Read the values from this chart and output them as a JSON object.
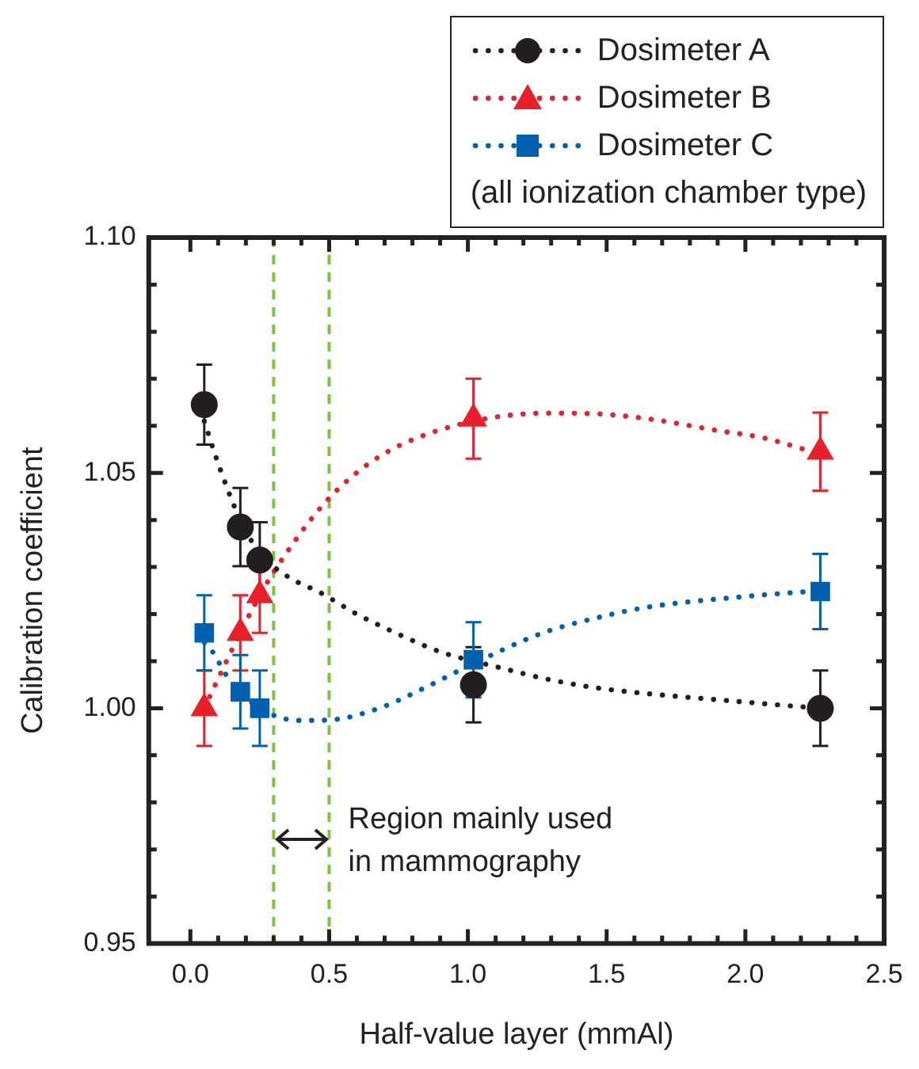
{
  "chart_data": {
    "type": "scatter",
    "xlabel": "Half-value layer (mmAl)",
    "ylabel": "Calibration coefficient",
    "legend": "top right",
    "legend_title": "(all ionization chamber type)",
    "grid": false,
    "xlim": [
      -0.15,
      2.5
    ],
    "ylim": [
      0.95,
      1.1
    ],
    "xticks": [
      {
        "value": 0,
        "label": "0.0"
      },
      {
        "value": 0.1,
        "label": null
      },
      {
        "value": 0.2,
        "label": null
      },
      {
        "value": 0.3,
        "label": null
      },
      {
        "value": 0.4,
        "label": null
      },
      {
        "value": 0.5,
        "label": "0.5"
      },
      {
        "value": 0.6,
        "label": null
      },
      {
        "value": 0.7,
        "label": null
      },
      {
        "value": 0.8,
        "label": null
      },
      {
        "value": 0.9,
        "label": null
      },
      {
        "value": 1,
        "label": "1.0"
      },
      {
        "value": 1.1,
        "label": null
      },
      {
        "value": 1.2,
        "label": null
      },
      {
        "value": 1.3,
        "label": null
      },
      {
        "value": 1.4,
        "label": null
      },
      {
        "value": 1.5,
        "label": "1.5"
      },
      {
        "value": 1.6,
        "label": null
      },
      {
        "value": 1.7,
        "label": null
      },
      {
        "value": 1.8,
        "label": null
      },
      {
        "value": 1.9,
        "label": null
      },
      {
        "value": 2,
        "label": "2.0"
      },
      {
        "value": 2.1,
        "label": null
      },
      {
        "value": 2.2,
        "label": null
      },
      {
        "value": 2.3,
        "label": null
      },
      {
        "value": 2.4,
        "label": null
      },
      {
        "value": 2.5,
        "label": "2.5"
      }
    ],
    "yticks": [
      {
        "value": 0.95,
        "label": "0.95"
      },
      {
        "value": 0.96,
        "label": null
      },
      {
        "value": 0.97,
        "label": null
      },
      {
        "value": 0.98,
        "label": null
      },
      {
        "value": 0.99,
        "label": null
      },
      {
        "value": 1,
        "label": "1.00"
      },
      {
        "value": 1.01,
        "label": null
      },
      {
        "value": 1.02,
        "label": null
      },
      {
        "value": 1.03,
        "label": null
      },
      {
        "value": 1.04,
        "label": null
      },
      {
        "value": 1.05,
        "label": "1.05"
      },
      {
        "value": 1.06,
        "label": null
      },
      {
        "value": 1.07,
        "label": null
      },
      {
        "value": 1.08,
        "label": null
      },
      {
        "value": 1.09,
        "label": null
      },
      {
        "value": 1.1,
        "label": "1.10"
      }
    ],
    "series": [
      {
        "type": "line",
        "color": "#231f20",
        "line_style": "dotted",
        "marker": "none",
        "x": [
          0.05,
          0.1,
          0.18,
          0.25,
          0.35,
          0.47,
          0.6,
          0.74,
          0.9,
          1.11,
          1.3,
          1.48,
          1.7,
          1.88,
          2.1,
          2.27
        ],
        "values": [
          1.061,
          1.052,
          1.04,
          1.033,
          1.028,
          1.0245,
          1.02,
          1.016,
          1.012,
          1.0087,
          1.006,
          1.0042,
          1.0028,
          1.0019,
          1.0008,
          1.0
        ]
      },
      {
        "type": "line",
        "color": "#e8202a",
        "line_style": "dotted",
        "marker": "none",
        "x": [
          0.05,
          0.13,
          0.25,
          0.37,
          0.49,
          0.62,
          0.76,
          1.02,
          1.29,
          1.45,
          1.66,
          1.9,
          2.06,
          2.27
        ],
        "values": [
          1.0,
          1.01,
          1.024,
          1.035,
          1.044,
          1.051,
          1.056,
          1.061,
          1.0627,
          1.0626,
          1.0614,
          1.059,
          1.0575,
          1.054
        ]
      },
      {
        "type": "line",
        "color": "#0060b0",
        "line_style": "dotted",
        "marker": "none",
        "x": [
          0.05,
          0.08,
          0.13,
          0.25,
          0.4,
          0.5,
          0.68,
          0.85,
          1.02,
          1.27,
          1.45,
          1.64,
          2.01,
          2.27
        ],
        "values": [
          1.014,
          1.012,
          1.007,
          1.0,
          0.9974,
          0.9975,
          1.0,
          1.0045,
          1.0095,
          1.016,
          1.019,
          1.0214,
          1.0238,
          1.025
        ]
      },
      {
        "name": "Dosimeter A",
        "color": "#231f20",
        "marker": "circle",
        "line_style": "dotted",
        "x": [
          0.05,
          0.18,
          0.25,
          1.02,
          2.27
        ],
        "values": [
          1.0645,
          1.0385,
          1.0315,
          1.005,
          1.0
        ],
        "errors": [
          0.0085,
          0.0083,
          0.008,
          0.008,
          0.008
        ]
      },
      {
        "name": "Dosimeter B",
        "color": "#e8202a",
        "marker": "triangle",
        "line_style": "dotted",
        "x": [
          0.05,
          0.18,
          0.25,
          1.02,
          2.27
        ],
        "values": [
          1.0,
          1.016,
          1.024,
          1.0615,
          1.0545
        ],
        "errors": [
          0.008,
          0.008,
          0.008,
          0.0085,
          0.0083
        ]
      },
      {
        "name": "Dosimeter C",
        "color": "#0060b0",
        "marker": "square",
        "line_style": "dotted",
        "x": [
          0.05,
          0.18,
          0.25,
          1.02,
          2.27
        ],
        "values": [
          1.016,
          1.0035,
          1.0,
          1.0103,
          1.0248
        ],
        "errors": [
          0.008,
          0.0078,
          0.008,
          0.008,
          0.008
        ]
      }
    ],
    "ref_lines": [
      {
        "axis": "x",
        "value": 0.3,
        "color": "#7dc242",
        "line_style": "dashed"
      },
      {
        "axis": "x",
        "value": 0.5,
        "color": "#7dc242",
        "line_style": "dashed"
      }
    ],
    "annotations": [
      "Region mainly used\nin mammography"
    ]
  }
}
